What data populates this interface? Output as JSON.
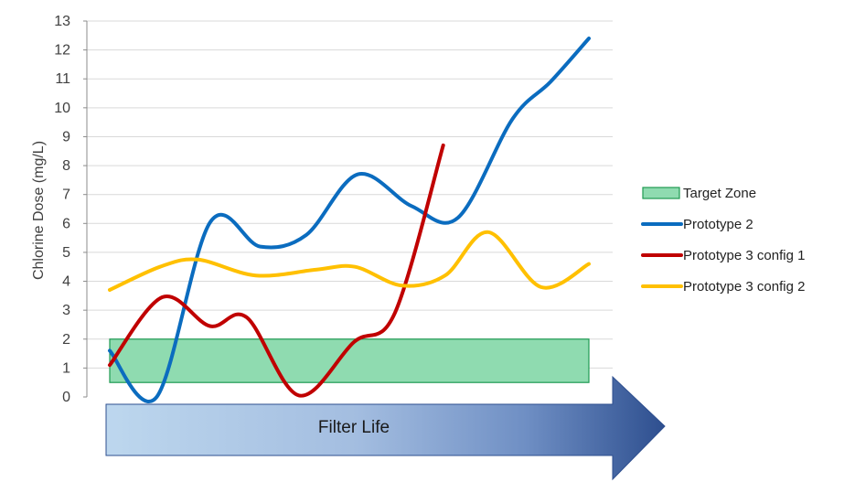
{
  "chart_data": {
    "type": "line",
    "title": "",
    "ylabel": "Chlorine Dose (mg/L)",
    "xlabel": "Filter Life",
    "ylim": [
      0,
      13
    ],
    "yticks": [
      0,
      1,
      2,
      3,
      4,
      5,
      6,
      7,
      8,
      9,
      10,
      11,
      12,
      13
    ],
    "grid": true,
    "legend_position": "right",
    "target_zone": {
      "name": "Target Zone",
      "ymin": 0.5,
      "ymax": 2.0,
      "xmin": 0.0,
      "xmax": 1.0,
      "color": "#8fdbb0",
      "stroke": "#1e9a52"
    },
    "series": [
      {
        "name": "Prototype 2",
        "color": "#0b6cbf",
        "points": [
          [
            0.0,
            1.6
          ],
          [
            0.098,
            0.0
          ],
          [
            0.21,
            6.05
          ],
          [
            0.314,
            5.2
          ],
          [
            0.41,
            5.6
          ],
          [
            0.518,
            7.7
          ],
          [
            0.63,
            6.6
          ],
          [
            0.727,
            6.2
          ],
          [
            0.84,
            9.6
          ],
          [
            0.92,
            10.9
          ],
          [
            1.0,
            12.4
          ]
        ]
      },
      {
        "name": "Prototype 3 config 1",
        "color": "#c00000",
        "points": [
          [
            0.0,
            1.1
          ],
          [
            0.11,
            3.45
          ],
          [
            0.209,
            2.45
          ],
          [
            0.286,
            2.75
          ],
          [
            0.395,
            0.05
          ],
          [
            0.51,
            1.9
          ],
          [
            0.595,
            2.9
          ],
          [
            0.696,
            8.7
          ]
        ]
      },
      {
        "name": "Prototype 3 config 2",
        "color": "#ffc000",
        "points": [
          [
            0.0,
            3.7
          ],
          [
            0.105,
            4.5
          ],
          [
            0.184,
            4.75
          ],
          [
            0.305,
            4.2
          ],
          [
            0.43,
            4.4
          ],
          [
            0.512,
            4.5
          ],
          [
            0.61,
            3.85
          ],
          [
            0.7,
            4.2
          ],
          [
            0.79,
            5.7
          ],
          [
            0.9,
            3.8
          ],
          [
            1.0,
            4.6
          ]
        ]
      }
    ]
  }
}
